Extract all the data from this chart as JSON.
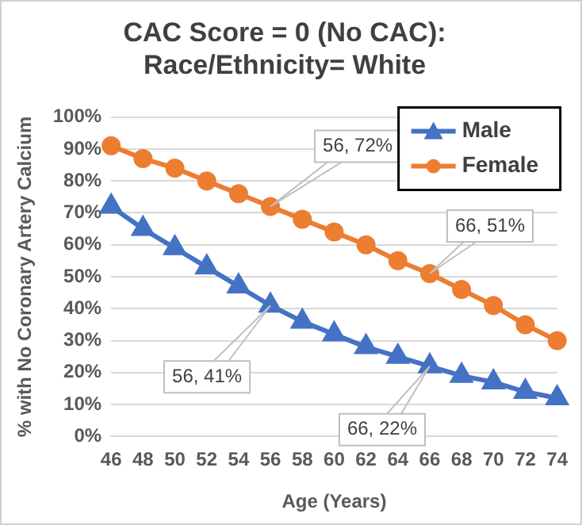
{
  "chart_data": {
    "type": "line",
    "title": [
      "CAC Score = 0 (No CAC):",
      "Race/Ethnicity= White"
    ],
    "xlabel": "Age (Years)",
    "ylabel": "% with No Coronary Artery Calcium",
    "categories": [
      "46",
      "48",
      "50",
      "52",
      "54",
      "56",
      "58",
      "60",
      "62",
      "64",
      "66",
      "68",
      "70",
      "72",
      "74"
    ],
    "series": [
      {
        "name": "Male",
        "color": "#4472c4",
        "marker": "triangle",
        "values": [
          72,
          65,
          59,
          53,
          47,
          41,
          36,
          32,
          28,
          25,
          22,
          19,
          17,
          14,
          12
        ]
      },
      {
        "name": "Female",
        "color": "#ed7d31",
        "marker": "circle",
        "values": [
          91,
          87,
          84,
          80,
          76,
          72,
          68,
          64,
          60,
          55,
          51,
          46,
          41,
          35,
          30
        ]
      }
    ],
    "ylim": [
      0,
      100
    ],
    "yticks": [
      {
        "value": 0,
        "label": "0%"
      },
      {
        "value": 10,
        "label": "10%"
      },
      {
        "value": 20,
        "label": "20%"
      },
      {
        "value": 30,
        "label": "30%"
      },
      {
        "value": 40,
        "label": "40%"
      },
      {
        "value": 50,
        "label": "50%"
      },
      {
        "value": 60,
        "label": "60%"
      },
      {
        "value": 70,
        "label": "70%"
      },
      {
        "value": 80,
        "label": "80%"
      },
      {
        "value": 90,
        "label": "90%"
      },
      {
        "value": 100,
        "label": "100%"
      }
    ],
    "grid": "y",
    "legend": "top right",
    "annotations": [
      {
        "text": "56, 72%",
        "x": "56",
        "y": 72
      },
      {
        "text": "66, 51%",
        "x": "66",
        "y": 51
      },
      {
        "text": "56, 41%",
        "x": "56",
        "y": 41
      },
      {
        "text": "66, 22%",
        "x": "66",
        "y": 22
      }
    ]
  }
}
